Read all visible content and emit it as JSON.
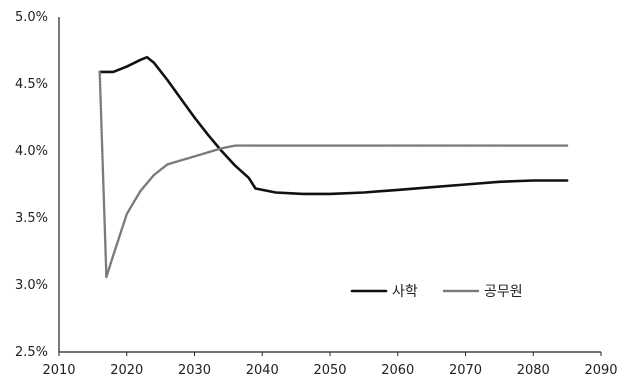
{
  "chart_data": {
    "type": "line",
    "title": "",
    "xlabel": "",
    "ylabel": "",
    "xlim": [
      2010,
      2090
    ],
    "ylim": [
      2.5,
      5.0
    ],
    "x_ticks": [
      2010,
      2020,
      2030,
      2040,
      2050,
      2060,
      2070,
      2080,
      2090
    ],
    "x_tick_labels": [
      "2010",
      "2020",
      "2030",
      "2040",
      "2050",
      "2060",
      "2070",
      "2080",
      "2090"
    ],
    "y_ticks": [
      2.5,
      3.0,
      3.5,
      4.0,
      4.5,
      5.0
    ],
    "y_tick_labels": [
      "2.5%",
      "3.0%",
      "3.5%",
      "4.0%",
      "4.5%",
      "5.0%"
    ],
    "grid": false,
    "legend_position": "bottom-right",
    "series": [
      {
        "name": "사학",
        "color": "#111111",
        "style": "solid",
        "x": [
          2016,
          2017,
          2018,
          2020,
          2022,
          2023,
          2024,
          2026,
          2028,
          2030,
          2032,
          2034,
          2036,
          2038,
          2039,
          2042,
          2046,
          2050,
          2055,
          2060,
          2065,
          2070,
          2075,
          2080,
          2085
        ],
        "y": [
          4.59,
          4.59,
          4.59,
          4.63,
          4.68,
          4.7,
          4.66,
          4.53,
          4.39,
          4.25,
          4.12,
          4.0,
          3.89,
          3.8,
          3.72,
          3.69,
          3.68,
          3.68,
          3.69,
          3.71,
          3.73,
          3.75,
          3.77,
          3.78,
          3.78
        ]
      },
      {
        "name": "공무원",
        "color": "#7a7a7a",
        "style": "dotted",
        "x": [
          2016,
          2017,
          2018,
          2020,
          2022,
          2024,
          2026,
          2028,
          2030,
          2032,
          2034,
          2036,
          2040,
          2050,
          2060,
          2070,
          2080,
          2085
        ],
        "y": [
          4.59,
          3.06,
          3.22,
          3.53,
          3.7,
          3.82,
          3.9,
          3.93,
          3.96,
          3.99,
          4.02,
          4.04,
          4.04,
          4.04,
          4.04,
          4.04,
          4.04,
          4.04
        ]
      }
    ]
  }
}
